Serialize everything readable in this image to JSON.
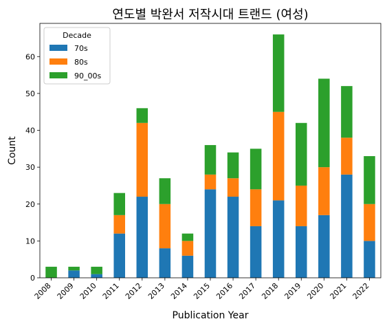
{
  "chart_data": {
    "type": "bar",
    "stacked": true,
    "title": "연도별 박완서 저작시대 트랜드 (여성)",
    "xlabel": "Publication Year",
    "ylabel": "Count",
    "ylim": [
      0,
      69
    ],
    "yticks": [
      0,
      10,
      20,
      30,
      40,
      50,
      60
    ],
    "categories": [
      "2008",
      "2009",
      "2010",
      "2011",
      "2012",
      "2013",
      "2014",
      "2015",
      "2016",
      "2017",
      "2018",
      "2019",
      "2020",
      "2021",
      "2022"
    ],
    "legend": {
      "title": "Decade",
      "placement": "top-left"
    },
    "series": [
      {
        "name": "70s",
        "color": "#1f77b4",
        "values": [
          0,
          2,
          1,
          12,
          22,
          8,
          6,
          24,
          22,
          14,
          21,
          14,
          17,
          28,
          10
        ]
      },
      {
        "name": "80s",
        "color": "#ff7f0e",
        "values": [
          0,
          0,
          0,
          5,
          20,
          12,
          4,
          4,
          5,
          10,
          24,
          11,
          13,
          10,
          10
        ]
      },
      {
        "name": "90_00s",
        "color": "#2ca02c",
        "values": [
          3,
          1,
          2,
          6,
          4,
          7,
          2,
          8,
          7,
          11,
          21,
          17,
          24,
          14,
          13
        ]
      }
    ]
  }
}
